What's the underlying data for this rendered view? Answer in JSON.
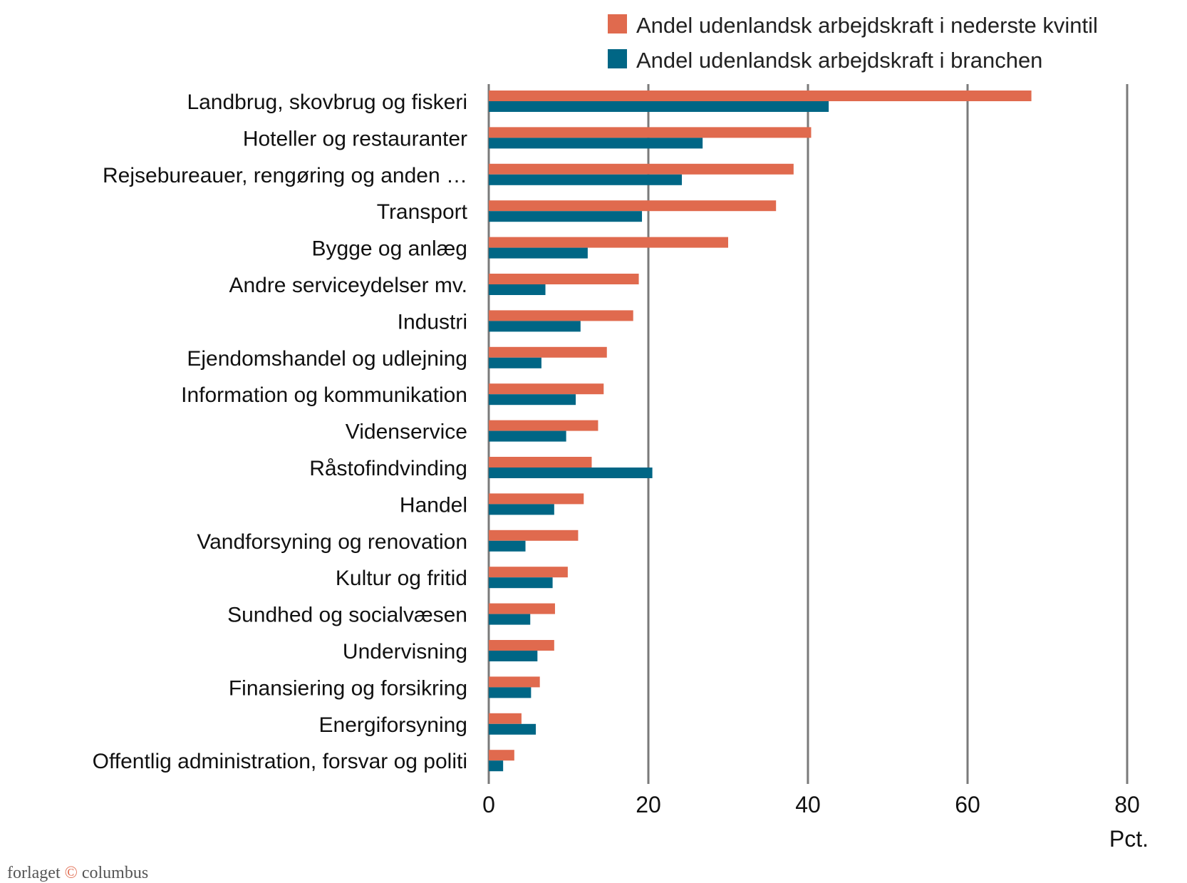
{
  "chart_data": {
    "type": "bar",
    "orientation": "horizontal",
    "categories": [
      "Landbrug, skovbrug og fiskeri",
      "Hoteller og restauranter",
      "Rejsebureauer, rengøring og anden …",
      "Transport",
      "Bygge og anlæg",
      "Andre serviceydelser  mv.",
      "Industri",
      "Ejendomshandel og udlejning",
      "Information og kommunikation",
      "Videnservice",
      "Råstofindvinding",
      "Handel",
      "Vandforsyning og renovation",
      "Kultur og fritid",
      "Sundhed og socialvæsen",
      "Undervisning",
      "Finansiering og forsikring",
      "Energiforsyning",
      "Offentlig administration, forsvar og politi"
    ],
    "series": [
      {
        "name": "Andel udenlandsk arbejdskraft i nederste kvintil",
        "color": "#e06a4e",
        "values": [
          68.0,
          40.4,
          38.2,
          36.0,
          30.0,
          18.8,
          18.1,
          14.8,
          14.4,
          13.7,
          12.9,
          11.9,
          11.2,
          9.9,
          8.3,
          8.2,
          6.4,
          4.1,
          3.2
        ]
      },
      {
        "name": "Andel udenlandsk arbejdskraft i branchen",
        "color": "#006685",
        "values": [
          42.6,
          26.8,
          24.2,
          19.2,
          12.4,
          7.1,
          11.5,
          6.6,
          10.9,
          9.7,
          20.5,
          8.2,
          4.6,
          8.0,
          5.2,
          6.1,
          5.3,
          5.9,
          1.8
        ]
      }
    ],
    "xlim": [
      0,
      80
    ],
    "xticks": [
      "0",
      "20",
      "40",
      "60",
      "80"
    ],
    "xlabel": "Pct.",
    "grid": true,
    "legend": "top-right"
  },
  "logo": {
    "left": "forlaget",
    "mark": "©",
    "right": "columbus"
  }
}
